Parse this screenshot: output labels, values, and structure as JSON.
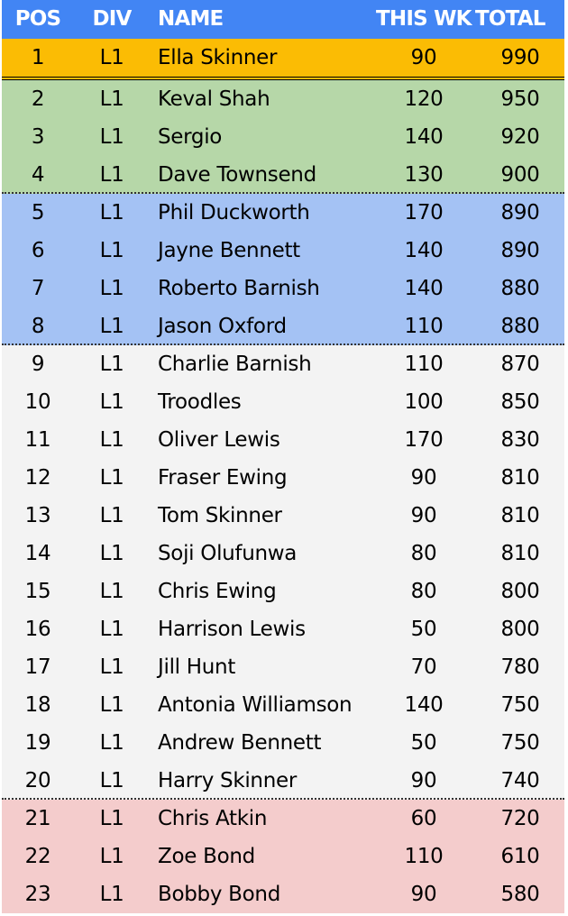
{
  "header": {
    "pos": "POS",
    "div": "DIV",
    "name": "NAME",
    "this_wk": "THIS WK",
    "total": "TOTAL"
  },
  "colors": {
    "header": "#4285f4",
    "leader": "#fbbc04",
    "promotion": "#b6d7a8",
    "playoff": "#a4c2f4",
    "mid": "#f3f3f3",
    "relegation": "#f4cccc"
  },
  "rows": [
    {
      "pos": "1",
      "div": "L1",
      "name": "Ella Skinner",
      "wk": "90",
      "total": "990",
      "zone": "leader"
    },
    {
      "pos": "2",
      "div": "L1",
      "name": "Keval Shah",
      "wk": "120",
      "total": "950",
      "zone": "promotion"
    },
    {
      "pos": "3",
      "div": "L1",
      "name": "Sergio",
      "wk": "140",
      "total": "920",
      "zone": "promotion"
    },
    {
      "pos": "4",
      "div": "L1",
      "name": "Dave Townsend",
      "wk": "130",
      "total": "900",
      "zone": "promotion"
    },
    {
      "pos": "5",
      "div": "L1",
      "name": "Phil Duckworth",
      "wk": "170",
      "total": "890",
      "zone": "playoff"
    },
    {
      "pos": "6",
      "div": "L1",
      "name": "Jayne Bennett",
      "wk": "140",
      "total": "890",
      "zone": "playoff"
    },
    {
      "pos": "7",
      "div": "L1",
      "name": "Roberto Barnish",
      "wk": "140",
      "total": "880",
      "zone": "playoff"
    },
    {
      "pos": "8",
      "div": "L1",
      "name": "Jason Oxford",
      "wk": "110",
      "total": "880",
      "zone": "playoff"
    },
    {
      "pos": "9",
      "div": "L1",
      "name": "Charlie Barnish",
      "wk": "110",
      "total": "870",
      "zone": "mid"
    },
    {
      "pos": "10",
      "div": "L1",
      "name": "Troodles",
      "wk": "100",
      "total": "850",
      "zone": "mid"
    },
    {
      "pos": "11",
      "div": "L1",
      "name": "Oliver Lewis",
      "wk": "170",
      "total": "830",
      "zone": "mid"
    },
    {
      "pos": "12",
      "div": "L1",
      "name": "Fraser Ewing",
      "wk": "90",
      "total": "810",
      "zone": "mid"
    },
    {
      "pos": "13",
      "div": "L1",
      "name": "Tom Skinner",
      "wk": "90",
      "total": "810",
      "zone": "mid"
    },
    {
      "pos": "14",
      "div": "L1",
      "name": "Soji Olufunwa",
      "wk": "80",
      "total": "810",
      "zone": "mid"
    },
    {
      "pos": "15",
      "div": "L1",
      "name": "Chris Ewing",
      "wk": "80",
      "total": "800",
      "zone": "mid"
    },
    {
      "pos": "16",
      "div": "L1",
      "name": "Harrison Lewis",
      "wk": "50",
      "total": "800",
      "zone": "mid"
    },
    {
      "pos": "17",
      "div": "L1",
      "name": "Jill Hunt",
      "wk": "70",
      "total": "780",
      "zone": "mid"
    },
    {
      "pos": "18",
      "div": "L1",
      "name": "Antonia Williamson",
      "wk": "140",
      "total": "750",
      "zone": "mid"
    },
    {
      "pos": "19",
      "div": "L1",
      "name": "Andrew Bennett",
      "wk": "50",
      "total": "750",
      "zone": "mid"
    },
    {
      "pos": "20",
      "div": "L1",
      "name": "Harry Skinner",
      "wk": "90",
      "total": "740",
      "zone": "mid"
    },
    {
      "pos": "21",
      "div": "L1",
      "name": "Chris Atkin",
      "wk": "60",
      "total": "720",
      "zone": "relegation"
    },
    {
      "pos": "22",
      "div": "L1",
      "name": "Zoe Bond",
      "wk": "110",
      "total": "610",
      "zone": "relegation"
    },
    {
      "pos": "23",
      "div": "L1",
      "name": "Bobby Bond",
      "wk": "90",
      "total": "580",
      "zone": "relegation"
    }
  ]
}
